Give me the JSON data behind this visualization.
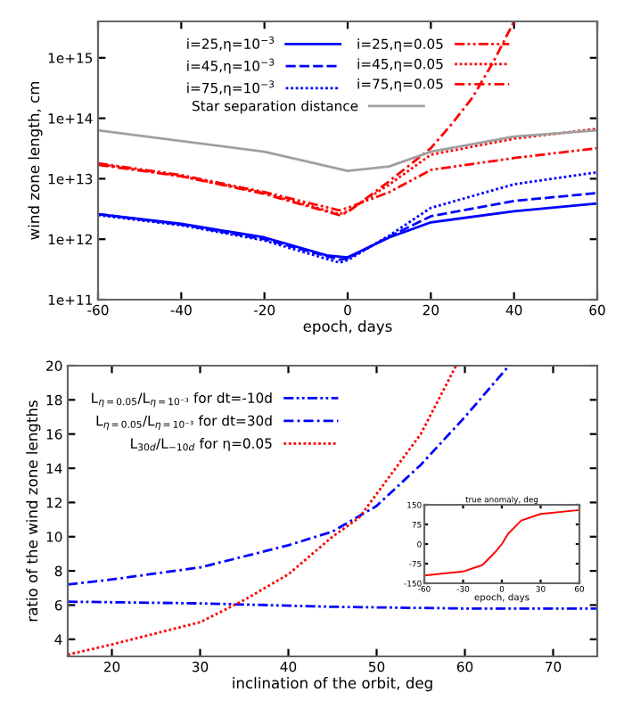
{
  "chart_data": [
    {
      "type": "line",
      "xlabel": "epoch, days",
      "ylabel": "wind zone length, cm",
      "log": "y",
      "xlim": [
        -60,
        60
      ],
      "xticks": [
        -60,
        -40,
        -20,
        0,
        20,
        40,
        60
      ],
      "ylim": [
        100000000000.0,
        4000000000000000.0
      ],
      "yticks": [
        {
          "value": 100000000000.0,
          "label": "1e+11"
        },
        {
          "value": 1000000000000.0,
          "label": "1e+12"
        },
        {
          "value": 10000000000000.0,
          "label": "1e+13"
        },
        {
          "value": 100000000000000.0,
          "label": "1e+14"
        },
        {
          "value": 1000000000000000.0,
          "label": "1e+15"
        }
      ],
      "legend": "top",
      "grid": false,
      "series": [
        {
          "name": "i=25,η=10$^{−3}$",
          "color": "#0000ff",
          "line_style": "solid",
          "x": [
            -60,
            -40,
            -20,
            -5,
            0,
            10,
            20,
            40,
            60
          ],
          "values": [
            2600000000000.0,
            1800000000000.0,
            1070000000000.0,
            540000000000.0,
            500000000000.0,
            1070000000000.0,
            1900000000000.0,
            2900000000000.0,
            3900000000000.0
          ]
        },
        {
          "name": "i=45,η=10$^{−3}$",
          "color": "#0000ff",
          "line_style": "dashed",
          "x": [
            -60,
            -40,
            -20,
            -2,
            0,
            10,
            20,
            40,
            60
          ],
          "values": [
            2600000000000.0,
            1750000000000.0,
            1000000000000.0,
            460000000000.0,
            480000000000.0,
            1100000000000.0,
            2400000000000.0,
            4300000000000.0,
            5800000000000.0
          ]
        },
        {
          "name": "i=75,η=10$^{−3}$",
          "color": "#0000ff",
          "line_style": "dotted",
          "x": [
            -60,
            -40,
            -20,
            -2,
            0,
            10,
            20,
            40,
            60
          ],
          "values": [
            2500000000000.0,
            1700000000000.0,
            950000000000.0,
            410000000000.0,
            450000000000.0,
            1150000000000.0,
            3300000000000.0,
            8100000000000.0,
            12800000000000.0
          ]
        },
        {
          "name": "i=25,η=0.05",
          "color": "#ff0000",
          "line_style": "dashdotdot",
          "x": [
            -60,
            -40,
            -20,
            -2,
            0,
            10,
            20,
            40,
            60
          ],
          "values": [
            18000000000000.0,
            11500000000000.0,
            6000000000000.0,
            3000000000000.0,
            3300000000000.0,
            6000000000000.0,
            14000000000000.0,
            22000000000000.0,
            32000000000000.0
          ]
        },
        {
          "name": "i=45,η=0.05",
          "color": "#ff0000",
          "line_style": "dotted",
          "x": [
            -60,
            -40,
            -20,
            -2,
            0,
            10,
            20,
            40,
            60
          ],
          "values": [
            17500000000000.0,
            11000000000000.0,
            5800000000000.0,
            2600000000000.0,
            2900000000000.0,
            8000000000000.0,
            25000000000000.0,
            46000000000000.0,
            67000000000000.0
          ]
        },
        {
          "name": "i=75,η=0.05",
          "color": "#ff0000",
          "line_style": "dashdot",
          "x": [
            -60,
            -40,
            -20,
            -2,
            0,
            10,
            20,
            25,
            30,
            35,
            40
          ],
          "values": [
            17000000000000.0,
            11000000000000.0,
            5600000000000.0,
            2500000000000.0,
            2800000000000.0,
            9100000000000.0,
            32000000000000.0,
            80000000000000.0,
            220000000000000.0,
            850000000000000.0,
            4000000000000000.0
          ]
        },
        {
          "name": "Star separation distance",
          "color": "#a0a0a0",
          "line_style": "solid",
          "x": [
            -60,
            -40,
            -20,
            0,
            10,
            20,
            40,
            60
          ],
          "values": [
            63000000000000.0,
            42000000000000.0,
            28000000000000.0,
            13500000000000.0,
            16000000000000.0,
            28000000000000.0,
            50000000000000.0,
            63000000000000.0
          ]
        }
      ]
    },
    {
      "type": "line",
      "xlabel": "inclination of the orbit, deg",
      "ylabel": "ratio of the wind zone lengths",
      "xlim": [
        15,
        75
      ],
      "xticks": [
        20,
        30,
        40,
        50,
        60,
        70
      ],
      "ylim": [
        3,
        20
      ],
      "yticks": [
        4,
        6,
        8,
        10,
        12,
        14,
        16,
        18,
        20
      ],
      "legend": "top left",
      "grid": false,
      "series": [
        {
          "name": "L$_{η=0.05}$/L$_{η=10⁻³}$ for dt=-10d",
          "color": "#0000ff",
          "line_style": "dashdotdot",
          "x": [
            15,
            30,
            45,
            60,
            75
          ],
          "values": [
            6.2,
            6.1,
            5.9,
            5.8,
            5.8
          ]
        },
        {
          "name": "L$_{η=0.05}$/L$_{η=10⁻³}$ for dt=30d",
          "color": "#0000ff",
          "line_style": "dashdot",
          "x": [
            15,
            20,
            30,
            40,
            45,
            50,
            55,
            60,
            65
          ],
          "values": [
            7.2,
            7.5,
            8.2,
            9.5,
            10.3,
            11.8,
            14.2,
            17,
            20
          ]
        },
        {
          "name": "L$_{30d}$/L$_{−10d}$ for η=0.05",
          "color": "#ff0000",
          "line_style": "dotted",
          "x": [
            15,
            20,
            30,
            35,
            40,
            45,
            48,
            50,
            55,
            59
          ],
          "values": [
            3.1,
            3.7,
            5.0,
            6.3,
            7.8,
            10,
            11.1,
            12.5,
            16,
            20
          ]
        }
      ]
    },
    {
      "type": "line",
      "title": "true anomaly, deg",
      "xlabel": "epoch, days",
      "xlim": [
        -60,
        60
      ],
      "xticks": [
        -60,
        -30,
        0,
        30,
        60
      ],
      "ylim": [
        -150,
        150
      ],
      "yticks": [
        -150,
        -75,
        0,
        75,
        150
      ],
      "grid": false,
      "series": [
        {
          "color": "#ff0000",
          "line_style": "solid",
          "x": [
            -60,
            -30,
            -15,
            -5,
            0,
            5,
            15,
            30,
            60
          ],
          "values": [
            -120,
            -105,
            -80,
            -30,
            0,
            40,
            90,
            115,
            130
          ]
        }
      ]
    }
  ]
}
